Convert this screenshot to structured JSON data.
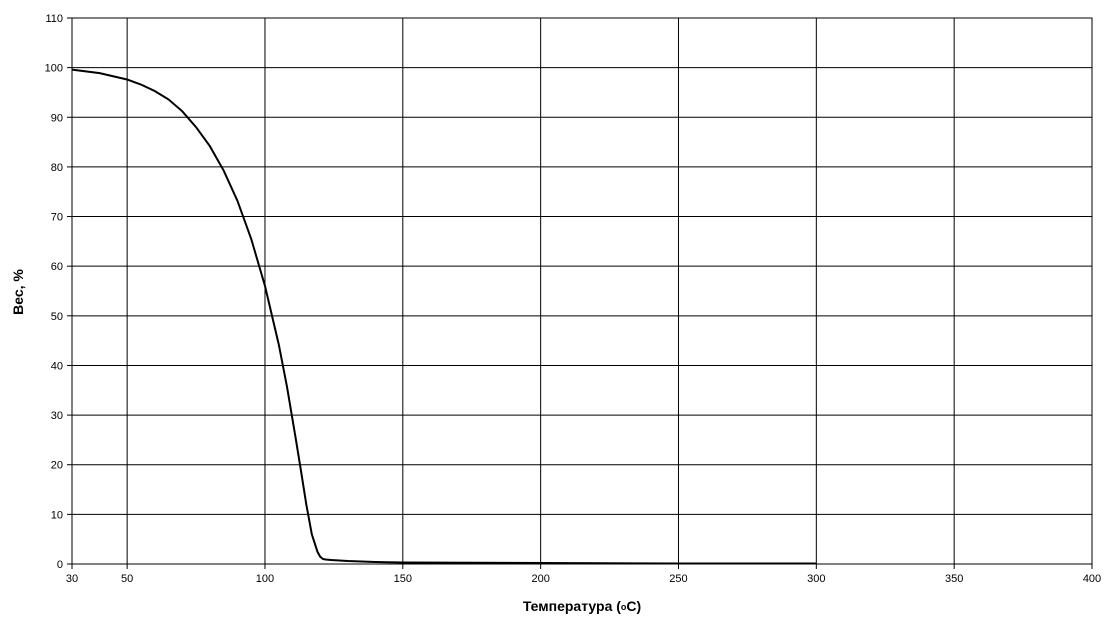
{
  "chart_data": {
    "type": "line",
    "title": "",
    "xlabel": "Температура (оС)",
    "xlabel_main": "Температура (",
    "xlabel_degree": "о",
    "xlabel_unit": "C)",
    "ylabel": "Вес, %",
    "xlim": [
      30,
      400
    ],
    "ylim": [
      0,
      110
    ],
    "x_ticks": [
      30,
      50,
      100,
      150,
      200,
      250,
      300,
      350,
      400
    ],
    "y_ticks": [
      0,
      10,
      20,
      30,
      40,
      50,
      60,
      70,
      80,
      90,
      100,
      110
    ],
    "x_gridlines": [
      50,
      100,
      150,
      200,
      250,
      300,
      350,
      400
    ],
    "grid": true,
    "legend": "none",
    "series": [
      {
        "color": "#000000",
        "x": [
          30,
          40,
          50,
          55,
          60,
          65,
          70,
          75,
          80,
          85,
          90,
          95,
          100,
          105,
          108,
          111,
          113,
          115,
          117,
          119,
          120,
          121,
          122,
          124,
          127,
          130,
          140,
          150,
          200,
          250,
          300
        ],
        "y": [
          99.6,
          98.9,
          97.6,
          96.6,
          95.3,
          93.6,
          91.2,
          88.0,
          84.2,
          79.3,
          73.2,
          65.5,
          56.0,
          44.2,
          35.7,
          25.8,
          19.0,
          12.0,
          6.0,
          2.5,
          1.5,
          1.0,
          0.9,
          0.8,
          0.7,
          0.6,
          0.4,
          0.3,
          0.2,
          0.1,
          0.1
        ]
      }
    ]
  }
}
